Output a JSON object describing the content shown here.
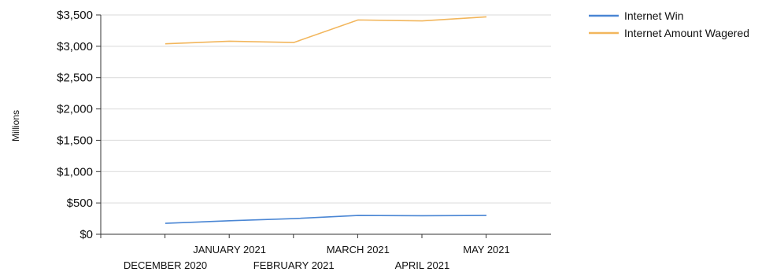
{
  "chart_data": {
    "type": "line",
    "title": "",
    "ylabel": "Millions",
    "xlabel": "",
    "categories": [
      "DECEMBER 2020",
      "JANUARY 2021",
      "FEBRUARY 2021",
      "MARCH 2021",
      "APRIL 2021",
      "MAY 2021"
    ],
    "yticks": [
      "$0",
      "$500",
      "$1,000",
      "$1,500",
      "$2,000",
      "$2,500",
      "$3,000",
      "$3,500"
    ],
    "ylim": [
      0,
      3500
    ],
    "grid": true,
    "legend_position": "top-right",
    "series": [
      {
        "name": "Internet Win",
        "color": "#4a86d4",
        "values": [
          175,
          215,
          250,
          300,
          295,
          300
        ]
      },
      {
        "name": "Internet Amount Wagered",
        "color": "#f2b65c",
        "values": [
          3040,
          3080,
          3060,
          3420,
          3405,
          3470
        ]
      }
    ]
  }
}
